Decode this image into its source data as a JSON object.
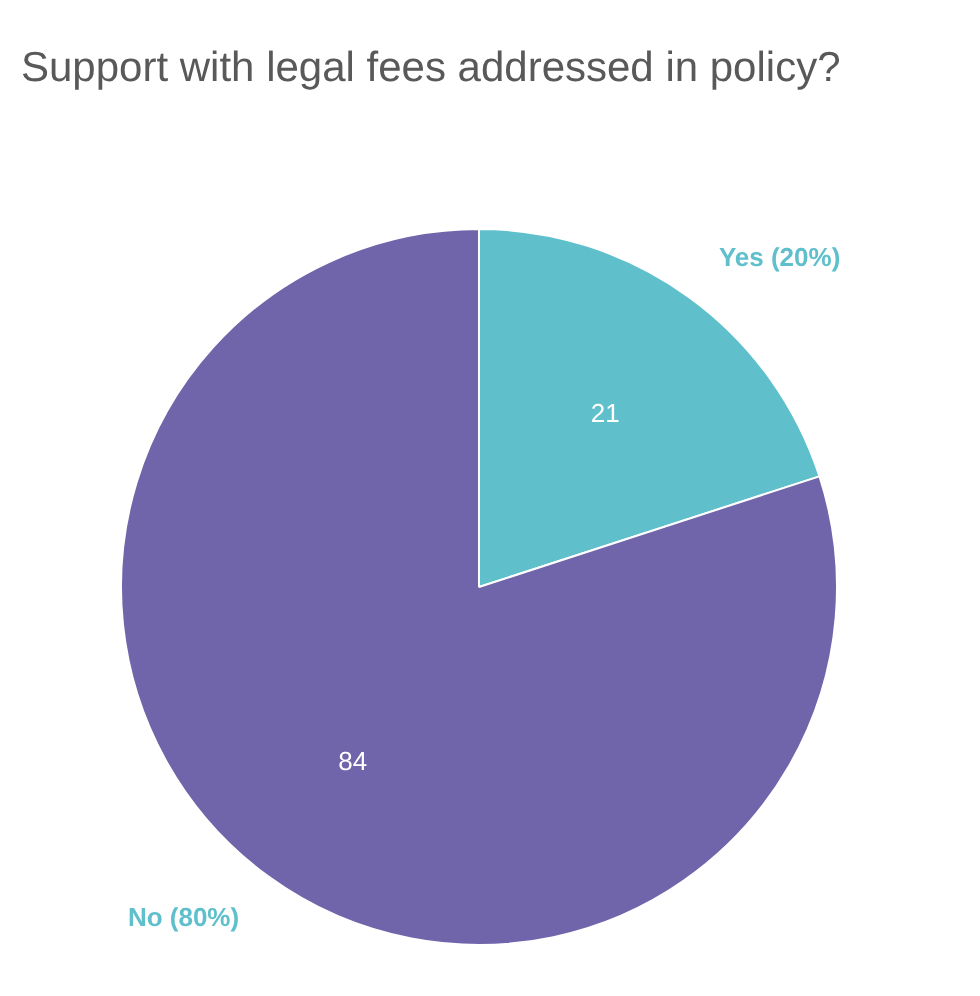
{
  "chart_data": {
    "type": "pie",
    "title": "Support with legal fees addressed in policy?",
    "categories": [
      "Yes (20%)",
      "No (80%)"
    ],
    "values": [
      21,
      84
    ],
    "colors": [
      "#5fc0cc",
      "#7064aa"
    ],
    "data_labels": true
  }
}
